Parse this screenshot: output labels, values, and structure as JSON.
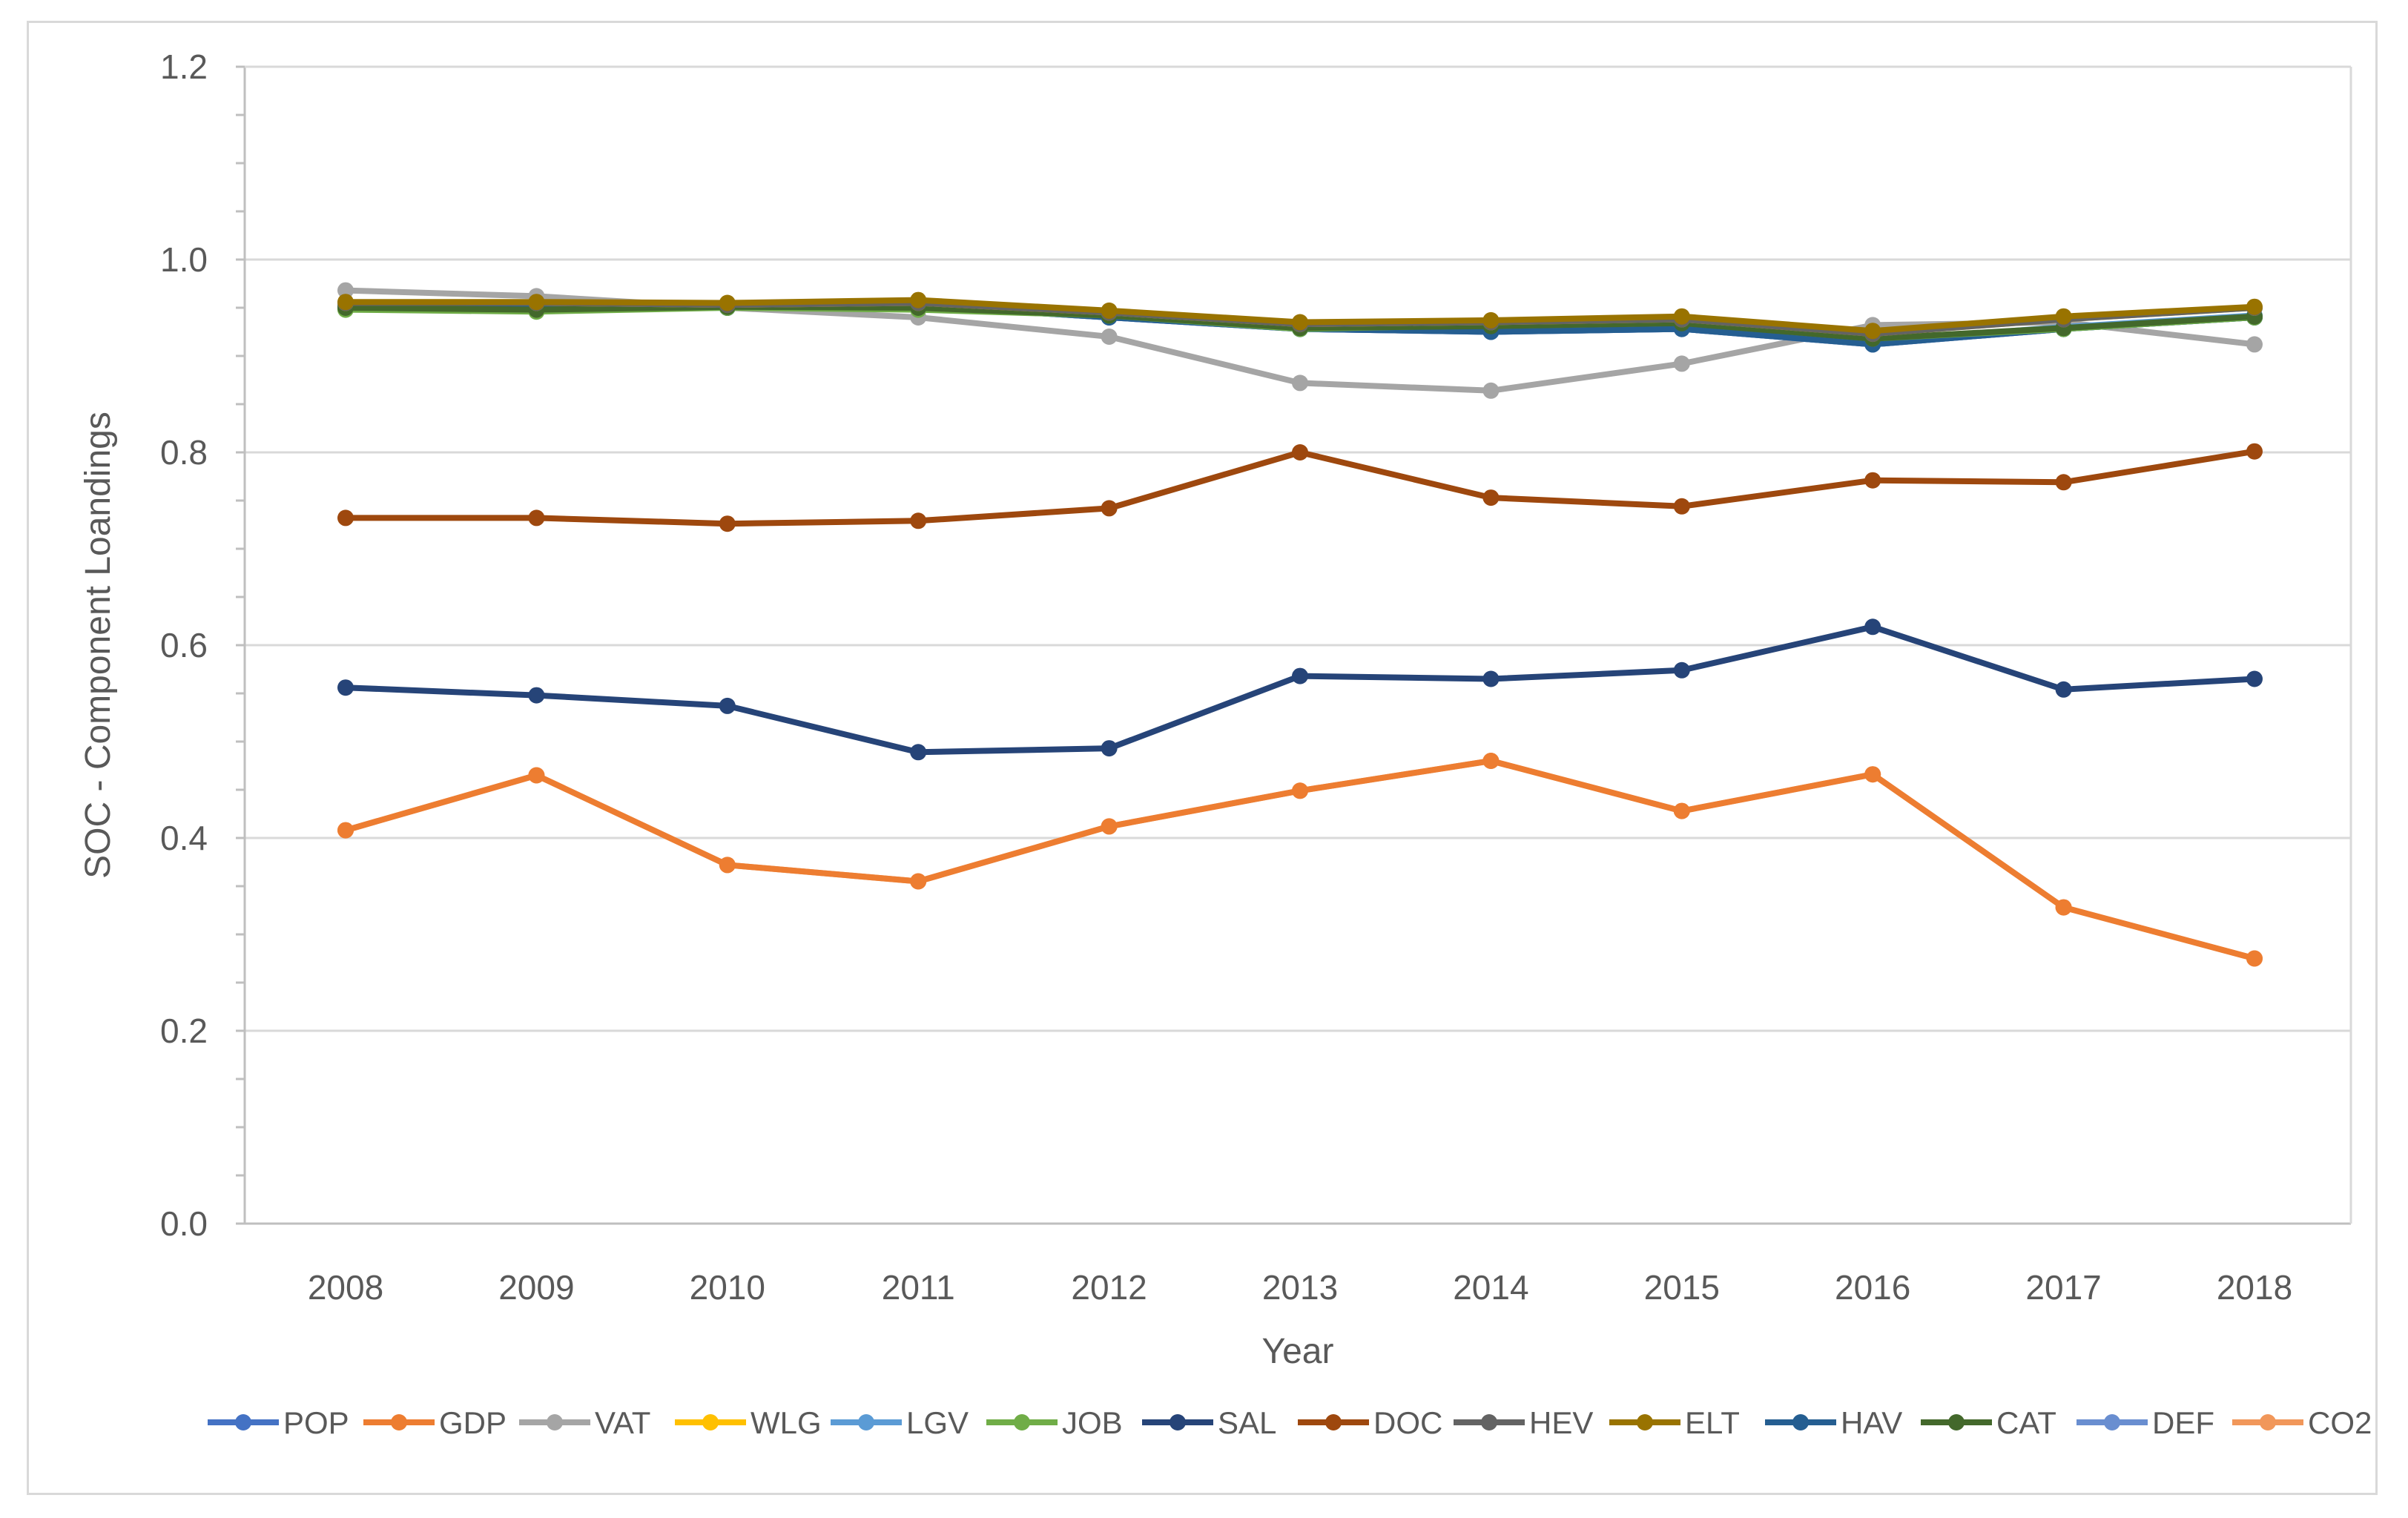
{
  "chart_data": {
    "type": "line",
    "title": "",
    "xlabel": "Year",
    "ylabel": "SOC - Component Loandings",
    "ylim": [
      0,
      1.2
    ],
    "yticks": [
      "0.0",
      "0.2",
      "0.4",
      "0.6",
      "0.8",
      "1.0",
      "1.2"
    ],
    "categories": [
      "2008",
      "2009",
      "2010",
      "2011",
      "2012",
      "2013",
      "2014",
      "2015",
      "2016",
      "2017",
      "2018"
    ],
    "legend_position": "bottom",
    "grid": true,
    "series": [
      {
        "name": "POP",
        "color": "#4472C4",
        "values": [
          0.952,
          0.95,
          0.95,
          0.952,
          0.94,
          0.928,
          0.925,
          0.928,
          0.912,
          0.928,
          0.94
        ]
      },
      {
        "name": "GDP",
        "color": "#ED7D31",
        "values": [
          0.408,
          0.465,
          0.372,
          0.355,
          0.412,
          0.449,
          0.48,
          0.428,
          0.466,
          0.328,
          0.275
        ]
      },
      {
        "name": "VAT",
        "color": "#A5A5A5",
        "values": [
          0.968,
          0.962,
          0.95,
          0.94,
          0.92,
          0.872,
          0.864,
          0.892,
          0.932,
          0.935,
          0.912
        ]
      },
      {
        "name": "WLG",
        "color": "#FFC000",
        "values": [
          0.955,
          0.955,
          0.953,
          0.955,
          0.945,
          0.933,
          0.935,
          0.938,
          0.923,
          0.938,
          0.95
        ]
      },
      {
        "name": "LGV",
        "color": "#5B9BD5",
        "values": [
          0.95,
          0.948,
          0.95,
          0.95,
          0.942,
          0.93,
          0.93,
          0.932,
          0.915,
          0.93,
          0.942
        ]
      },
      {
        "name": "JOB",
        "color": "#70AD47",
        "values": [
          0.948,
          0.946,
          0.95,
          0.948,
          0.942,
          0.928,
          0.932,
          0.935,
          0.918,
          0.928,
          0.94
        ]
      },
      {
        "name": "SAL",
        "color": "#264478",
        "values": [
          0.556,
          0.548,
          0.537,
          0.489,
          0.493,
          0.568,
          0.565,
          0.574,
          0.619,
          0.554,
          0.565
        ]
      },
      {
        "name": "DOC",
        "color": "#9E480E",
        "values": [
          0.732,
          0.732,
          0.726,
          0.729,
          0.742,
          0.8,
          0.753,
          0.744,
          0.771,
          0.769,
          0.801
        ]
      },
      {
        "name": "HEV",
        "color": "#636363",
        "values": [
          0.955,
          0.955,
          0.953,
          0.955,
          0.945,
          0.933,
          0.935,
          0.938,
          0.923,
          0.938,
          0.95
        ]
      },
      {
        "name": "ELT",
        "color": "#997300",
        "values": [
          0.956,
          0.956,
          0.955,
          0.958,
          0.947,
          0.935,
          0.937,
          0.941,
          0.926,
          0.941,
          0.951
        ]
      },
      {
        "name": "HAV",
        "color": "#255E91",
        "values": [
          0.952,
          0.95,
          0.95,
          0.952,
          0.94,
          0.928,
          0.925,
          0.928,
          0.912,
          0.928,
          0.94
        ]
      },
      {
        "name": "CAT",
        "color": "#43682B",
        "values": [
          0.95,
          0.948,
          0.951,
          0.95,
          0.942,
          0.929,
          0.931,
          0.934,
          0.918,
          0.929,
          0.941
        ]
      },
      {
        "name": "DEF",
        "color": "#698ED0",
        "values": [
          0.952,
          0.95,
          0.95,
          0.952,
          0.94,
          0.928,
          0.925,
          0.928,
          0.912,
          0.928,
          0.94
        ]
      },
      {
        "name": "CO2",
        "color": "#F1975A",
        "values": [
          0.408,
          0.465,
          0.372,
          0.355,
          0.412,
          0.449,
          0.48,
          0.428,
          0.466,
          0.328,
          0.275
        ]
      }
    ]
  }
}
